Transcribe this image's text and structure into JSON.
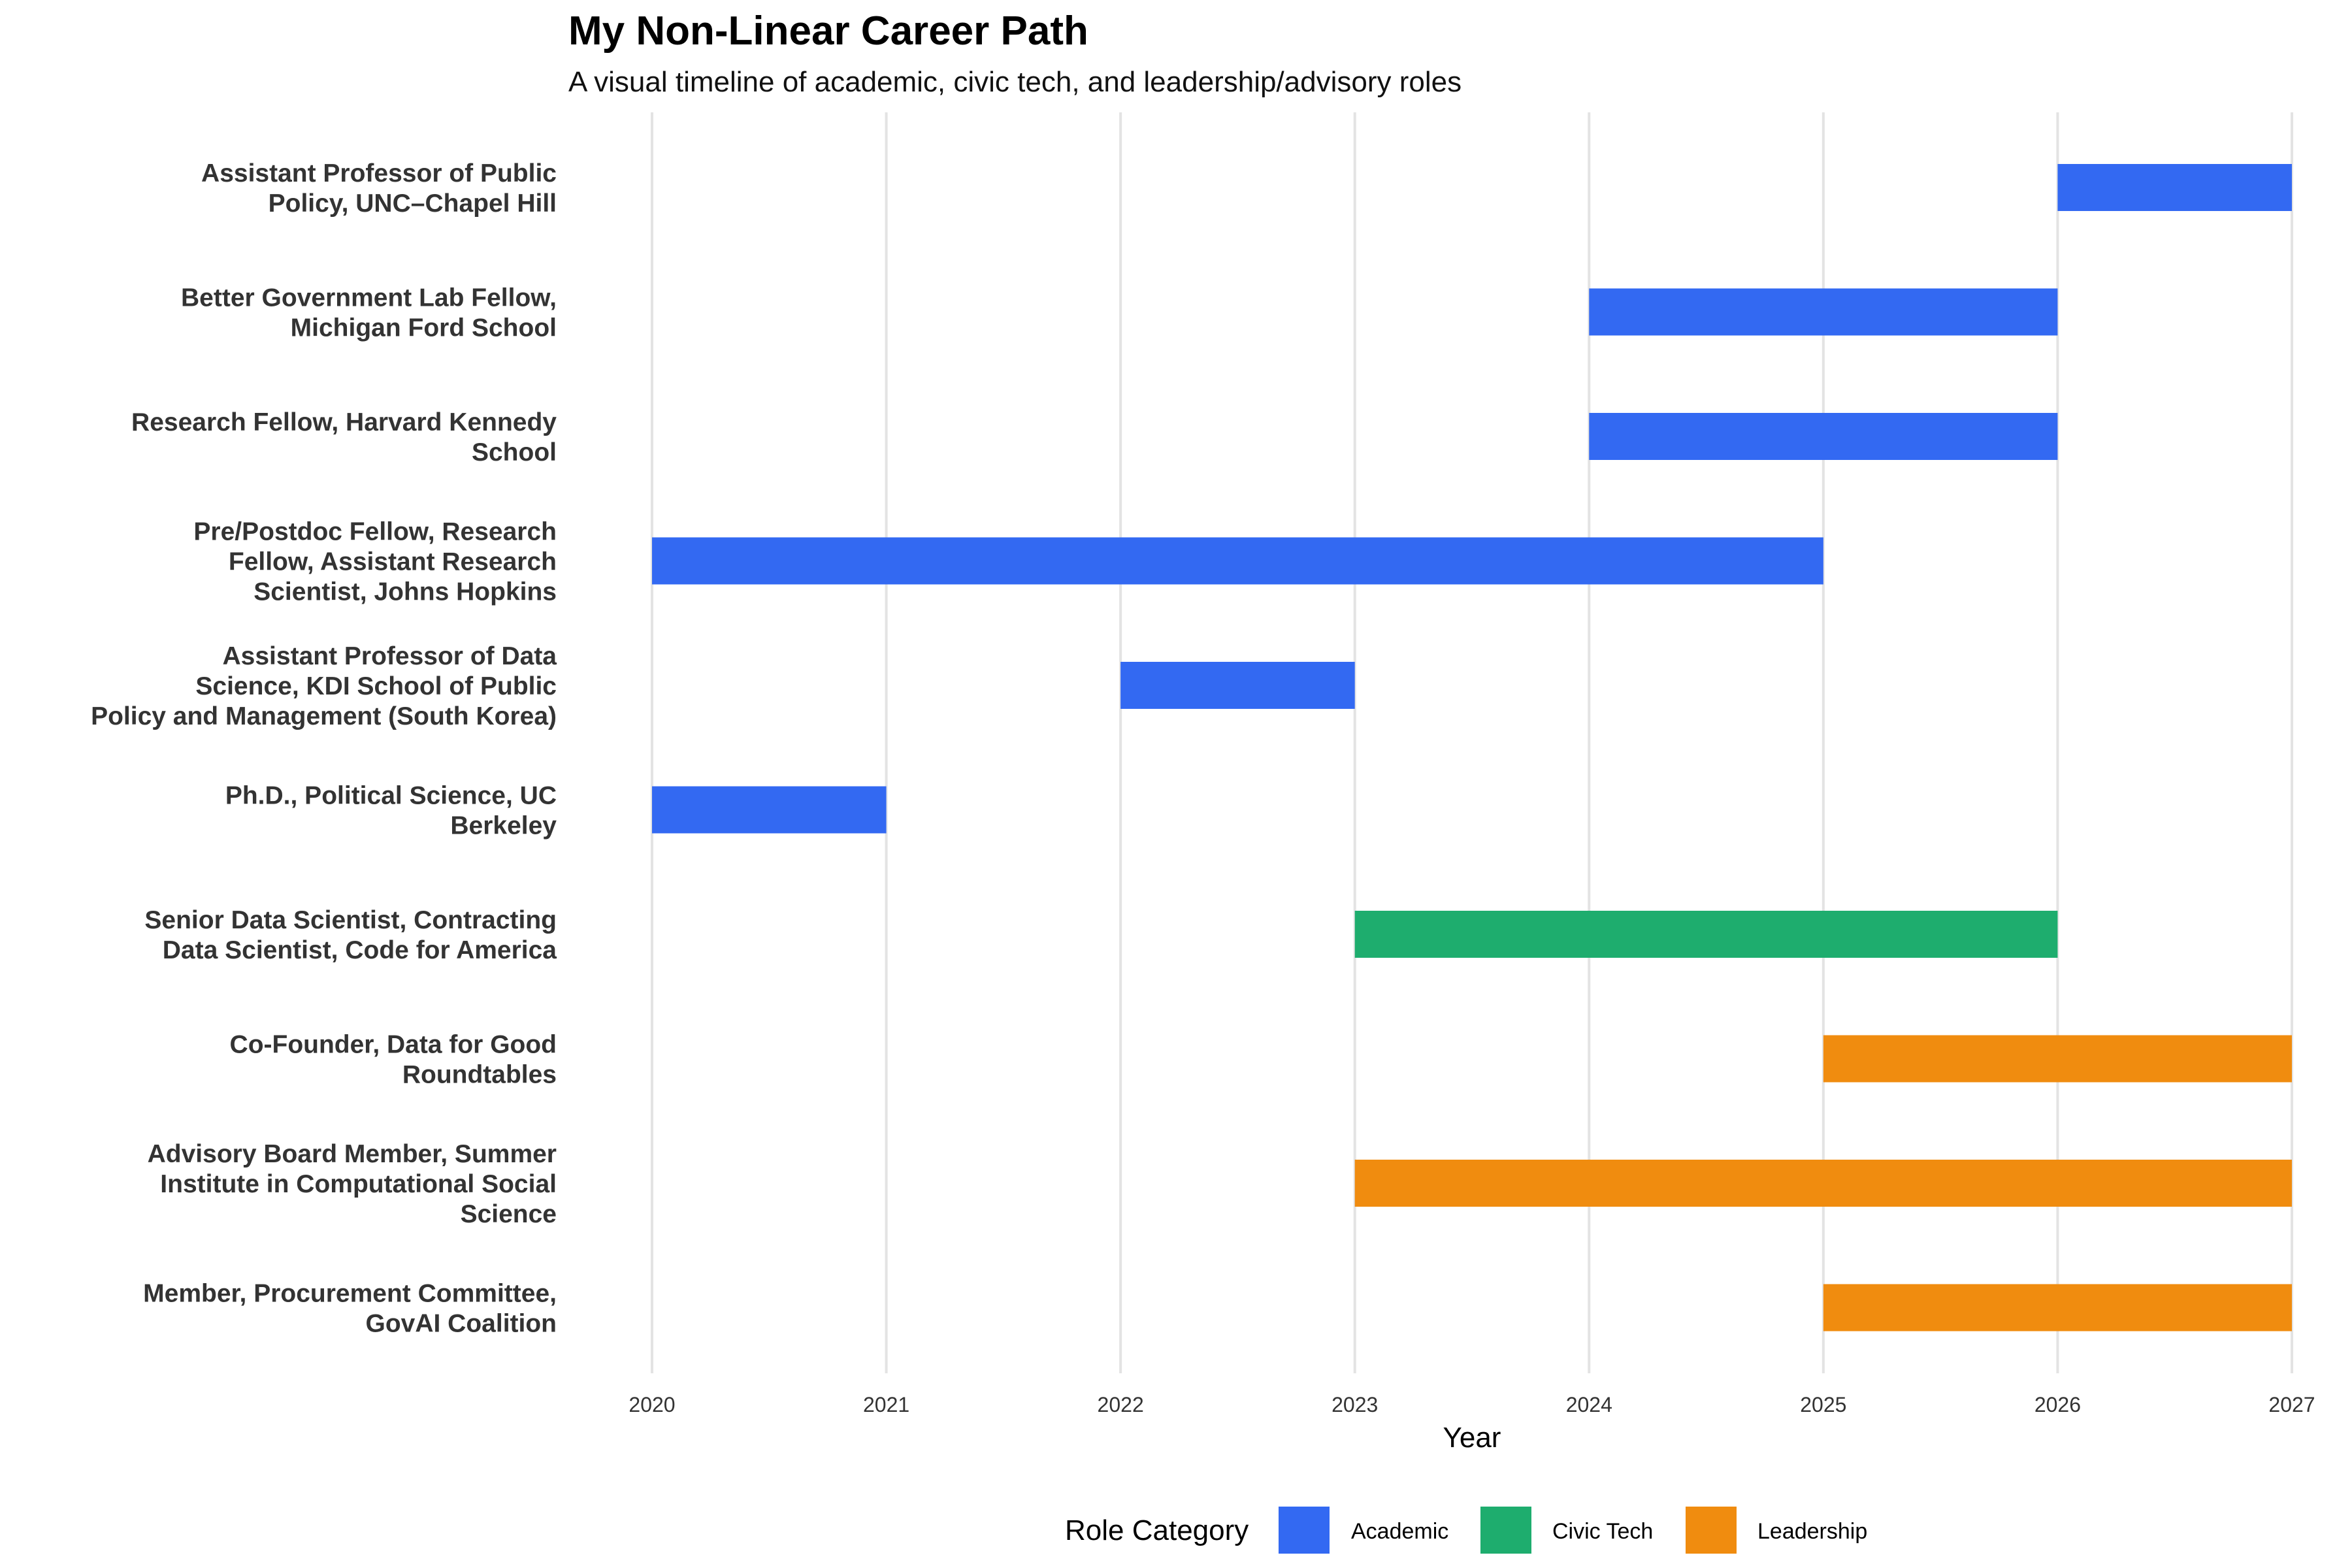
{
  "chart_data": {
    "type": "gantt",
    "title": "My Non-Linear Career Path",
    "subtitle": "A visual timeline of academic, civic tech, and leadership/advisory roles",
    "xlabel": "Year",
    "xlim": [
      2020,
      2027
    ],
    "x_ticks": [
      "2020",
      "2021",
      "2022",
      "2023",
      "2024",
      "2025",
      "2026",
      "2027"
    ],
    "grid": true,
    "legend": {
      "title": "Role Category",
      "position": "bottom",
      "items": [
        {
          "label": "Academic",
          "color": "#3369F2"
        },
        {
          "label": "Civic Tech",
          "color": "#1EAD6E"
        },
        {
          "label": "Leadership",
          "color": "#F08C0F"
        }
      ]
    },
    "roles": [
      {
        "label_lines": [
          "Assistant Professor of Public",
          "Policy, UNC–Chapel Hill"
        ],
        "category": "Academic",
        "start": 2026,
        "end": 2027
      },
      {
        "label_lines": [
          "Better Government Lab Fellow,",
          "Michigan Ford School"
        ],
        "category": "Academic",
        "start": 2024,
        "end": 2026
      },
      {
        "label_lines": [
          "Research Fellow, Harvard Kennedy",
          "School"
        ],
        "category": "Academic",
        "start": 2024,
        "end": 2026
      },
      {
        "label_lines": [
          "Pre/Postdoc Fellow, Research",
          "Fellow, Assistant Research",
          "Scientist, Johns Hopkins"
        ],
        "category": "Academic",
        "start": 2020,
        "end": 2025
      },
      {
        "label_lines": [
          "Assistant Professor of Data",
          "Science, KDI School of Public",
          "Policy and Management (South Korea)"
        ],
        "category": "Academic",
        "start": 2022,
        "end": 2023
      },
      {
        "label_lines": [
          "Ph.D., Political Science, UC",
          "Berkeley"
        ],
        "category": "Academic",
        "start": 2020,
        "end": 2021
      },
      {
        "label_lines": [
          "Senior Data Scientist, Contracting",
          "Data Scientist, Code for America"
        ],
        "category": "Civic Tech",
        "start": 2023,
        "end": 2026
      },
      {
        "label_lines": [
          "Co-Founder, Data for Good",
          "Roundtables"
        ],
        "category": "Leadership",
        "start": 2025,
        "end": 2027
      },
      {
        "label_lines": [
          "Advisory Board Member, Summer",
          "Institute in Computational Social",
          "Science"
        ],
        "category": "Leadership",
        "start": 2023,
        "end": 2027
      },
      {
        "label_lines": [
          "Member, Procurement Committee,",
          "GovAI Coalition"
        ],
        "category": "Leadership",
        "start": 2025,
        "end": 2027
      }
    ]
  }
}
